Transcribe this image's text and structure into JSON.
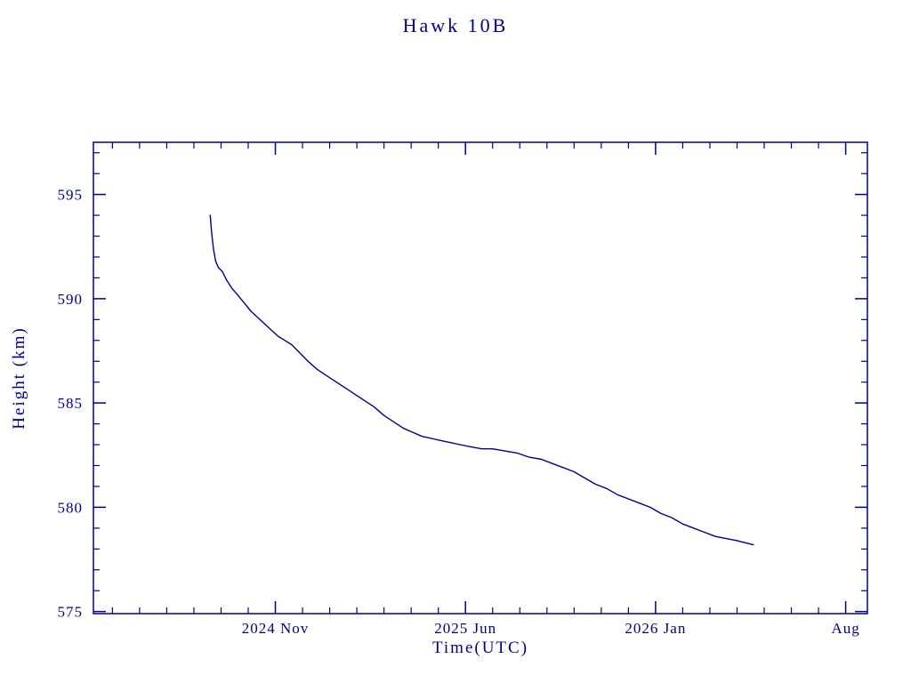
{
  "chart_data": {
    "type": "line",
    "title": "Hawk 10B",
    "xlabel": "Time(UTC)",
    "ylabel": "Height (km)",
    "line_color": "#00008b",
    "axis_color": "#00008b",
    "background": "#ffffff",
    "grid": false,
    "legend": "none",
    "x_unit": "months since 2024-04-01",
    "xlim": [
      0.3,
      28.8
    ],
    "ylim": [
      574.9,
      597.5
    ],
    "x_major_ticks": [
      {
        "value": 7,
        "label": "2024 Nov"
      },
      {
        "value": 14,
        "label": "2025 Jun"
      },
      {
        "value": 21,
        "label": "2026 Jan"
      },
      {
        "value": 28,
        "label": "Aug"
      }
    ],
    "x_minor_step": 1,
    "y_major_ticks": [
      {
        "value": 575,
        "label": "575"
      },
      {
        "value": 580,
        "label": "580"
      },
      {
        "value": 585,
        "label": "585"
      },
      {
        "value": 590,
        "label": "590"
      },
      {
        "value": 595,
        "label": "595"
      }
    ],
    "y_minor_step": 1,
    "series": [
      {
        "name": "height_km",
        "x": [
          4.6,
          4.65,
          4.72,
          4.8,
          4.9,
          5.05,
          5.2,
          5.4,
          5.6,
          5.85,
          6.1,
          6.35,
          6.6,
          6.85,
          7.1,
          7.35,
          7.6,
          7.9,
          8.2,
          8.55,
          8.9,
          9.25,
          9.6,
          9.95,
          10.3,
          10.65,
          11.0,
          11.35,
          11.7,
          12.05,
          12.4,
          12.75,
          13.1,
          13.45,
          13.8,
          14.2,
          14.6,
          15.0,
          15.45,
          15.9,
          16.35,
          16.8,
          17.2,
          17.6,
          18.0,
          18.4,
          18.8,
          19.2,
          19.6,
          20.0,
          20.4,
          20.8,
          21.2,
          21.6,
          22.0,
          22.4,
          22.8,
          23.2,
          23.6,
          24.0,
          24.3,
          24.6
        ],
        "y": [
          594.0,
          593.2,
          592.4,
          591.8,
          591.5,
          591.3,
          590.9,
          590.5,
          590.2,
          589.8,
          589.4,
          589.1,
          588.8,
          588.5,
          588.2,
          588.0,
          587.8,
          587.4,
          587.0,
          586.6,
          586.3,
          586.0,
          585.7,
          585.4,
          585.1,
          584.8,
          584.4,
          584.1,
          583.8,
          583.6,
          583.4,
          583.3,
          583.2,
          583.1,
          583.0,
          582.9,
          582.8,
          582.8,
          582.7,
          582.6,
          582.4,
          582.3,
          582.1,
          581.9,
          581.7,
          581.4,
          581.1,
          580.9,
          580.6,
          580.4,
          580.2,
          580.0,
          579.7,
          579.5,
          579.2,
          579.0,
          578.8,
          578.6,
          578.5,
          578.4,
          578.3,
          578.2
        ]
      }
    ]
  }
}
